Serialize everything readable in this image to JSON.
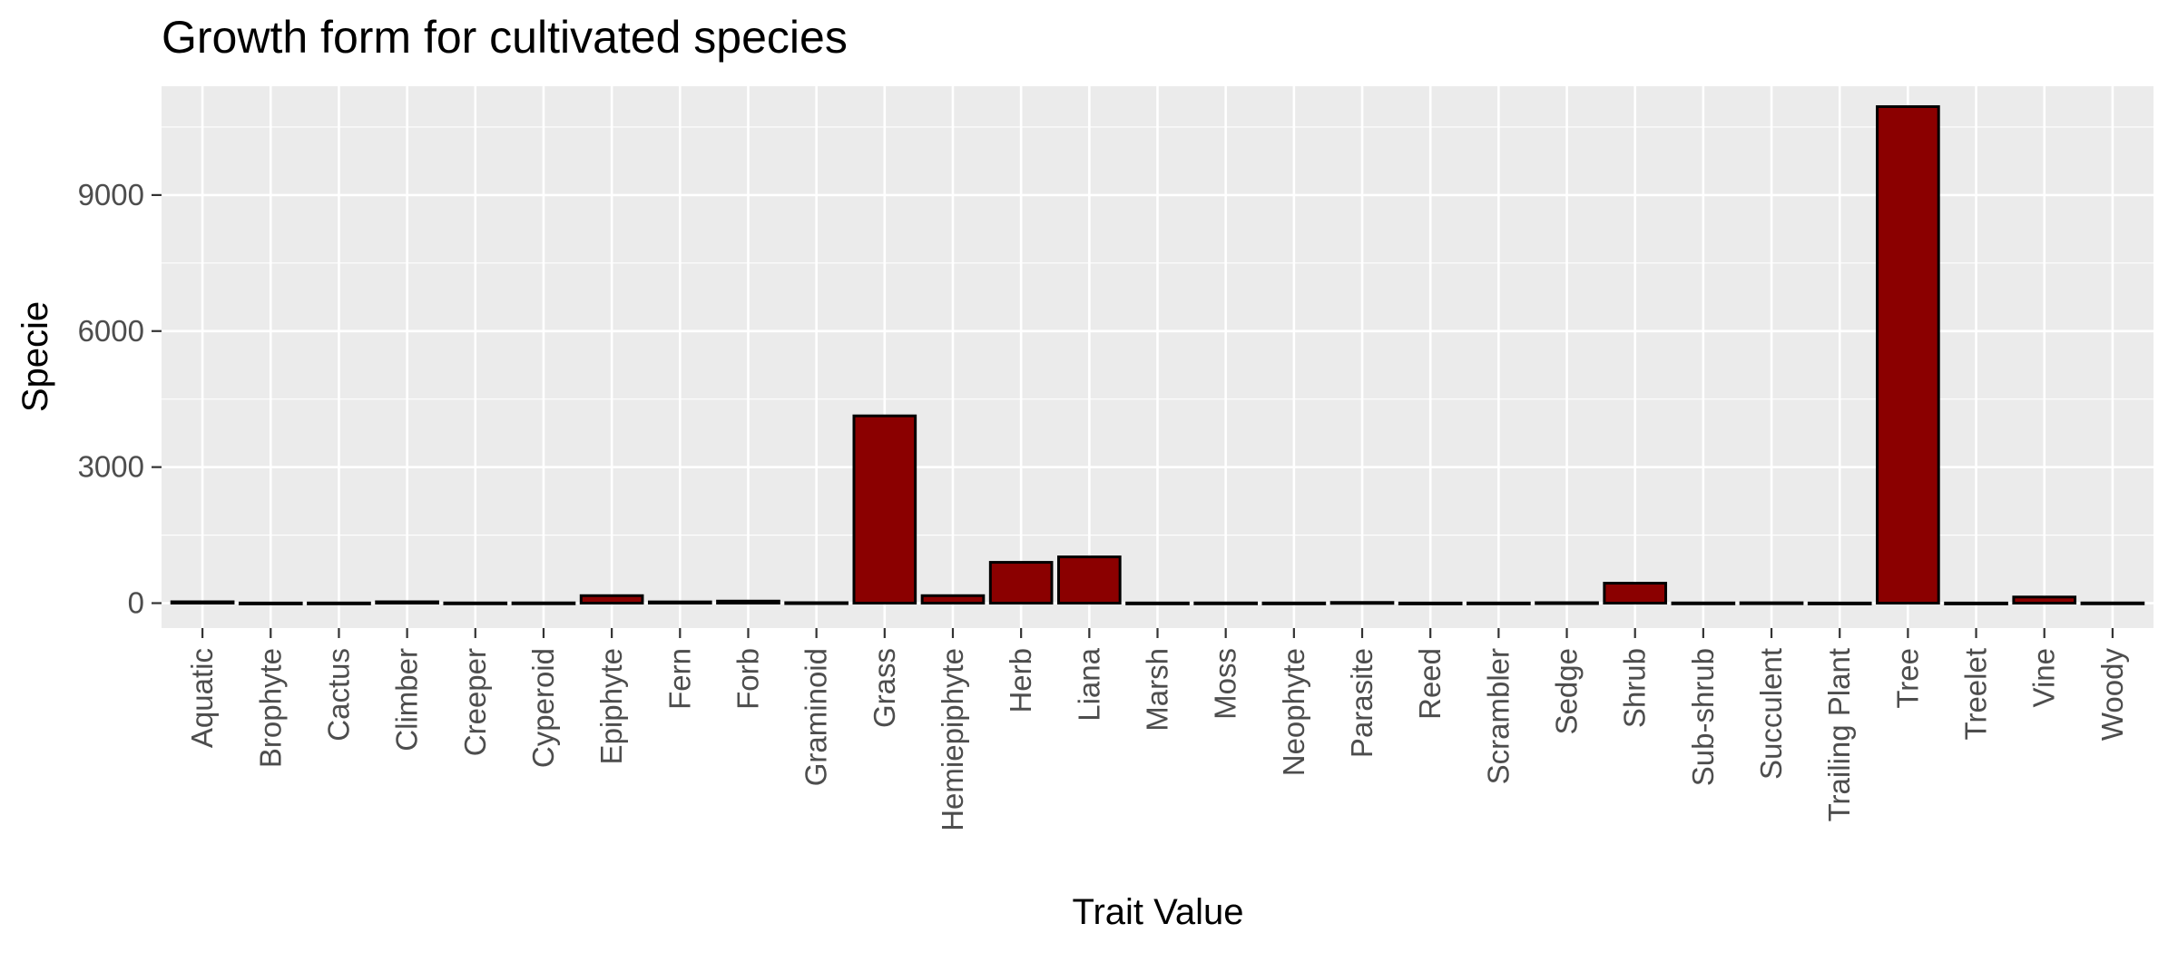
{
  "chart_data": {
    "type": "bar",
    "title": "Growth form for cultivated species",
    "xlabel": "Trait Value",
    "ylabel": "Specie",
    "categories": [
      "Aquatic",
      "Brophyte",
      "Cactus",
      "Climber",
      "Creeper",
      "Cyperoid",
      "Epiphyte",
      "Fern",
      "Forb",
      "Graminoid",
      "Grass",
      "Hemiepiphyte",
      "Herb",
      "Liana",
      "Marsh",
      "Moss",
      "Neophyte",
      "Parasite",
      "Reed",
      "Scrambler",
      "Sedge",
      "Shrub",
      "Sub-shrub",
      "Succulent",
      "Trailing Plant",
      "Tree",
      "Treelet",
      "Vine",
      "Woody"
    ],
    "values": [
      30,
      3,
      4,
      30,
      5,
      6,
      165,
      28,
      45,
      10,
      4130,
      165,
      900,
      1020,
      4,
      5,
      4,
      15,
      3,
      4,
      10,
      440,
      5,
      8,
      3,
      10950,
      3,
      135,
      5
    ],
    "ylim": [
      -550,
      11400
    ],
    "yticks": [
      0,
      3000,
      6000,
      9000
    ],
    "ytick_labels": [
      "0",
      "3000",
      "6000",
      "9000"
    ],
    "grid": true,
    "legend": "none",
    "bar_color": "#8B0000",
    "bar_outline": "#000000",
    "panel_background": "#EBEBEB",
    "gridline_color": "#FFFFFF"
  }
}
